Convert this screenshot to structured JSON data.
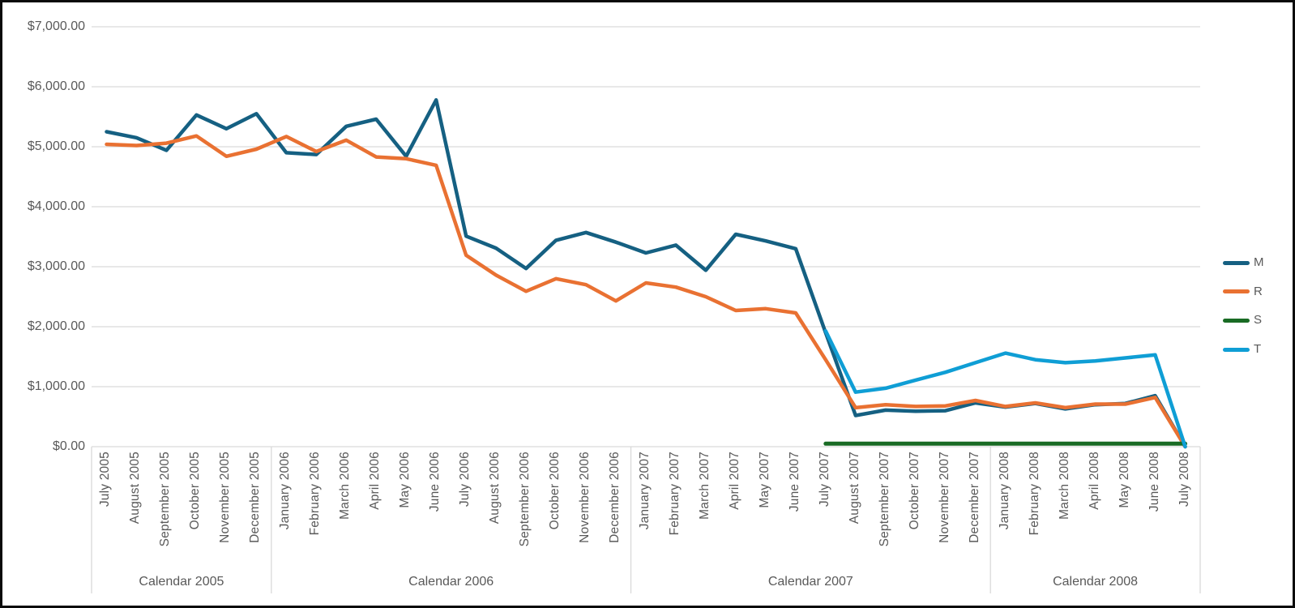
{
  "colors": {
    "background": "#FFFFFF",
    "border": "#0B0B0B",
    "gridline": "#D9D9D9",
    "axis_line": "#D9D9D9",
    "label_text": "#595959"
  },
  "chart_data": {
    "type": "line",
    "title": "",
    "xlabel": "",
    "ylabel": "",
    "grid": true,
    "categories": [
      "July 2005",
      "August 2005",
      "September 2005",
      "October 2005",
      "November 2005",
      "December 2005",
      "January 2006",
      "February 2006",
      "March 2006",
      "April 2006",
      "May 2006",
      "June 2006",
      "July 2006",
      "August 2006",
      "September 2006",
      "October 2006",
      "November 2006",
      "December 2006",
      "January 2007",
      "February 2007",
      "March 2007",
      "April 2007",
      "May 2007",
      "June 2007",
      "July 2007",
      "August 2007",
      "September 2007",
      "October 2007",
      "November 2007",
      "December 2007",
      "January 2008",
      "February 2008",
      "March 2008",
      "April 2008",
      "May 2008",
      "June 2008",
      "July 2008"
    ],
    "year_groups": [
      {
        "label": "Calendar 2005",
        "start": 0,
        "end": 5
      },
      {
        "label": "Calendar 2006",
        "start": 6,
        "end": 17
      },
      {
        "label": "Calendar 2007",
        "start": 18,
        "end": 29
      },
      {
        "label": "Calendar 2008",
        "start": 30,
        "end": 36
      }
    ],
    "series": [
      {
        "name": "M",
        "color": "#156082",
        "values": [
          5250,
          5150,
          4940,
          5530,
          5300,
          5550,
          4900,
          4870,
          5340,
          5460,
          4840,
          5780,
          3510,
          3310,
          2970,
          3440,
          3570,
          3410,
          3230,
          3360,
          2940,
          3540,
          3430,
          3300,
          1900,
          520,
          610,
          590,
          600,
          730,
          660,
          720,
          630,
          700,
          720,
          850,
          0
        ]
      },
      {
        "name": "R",
        "color": "#E97132",
        "values": [
          5040,
          5020,
          5060,
          5180,
          4840,
          4960,
          5170,
          4920,
          5110,
          4830,
          4800,
          4690,
          3190,
          2860,
          2590,
          2800,
          2700,
          2430,
          2730,
          2660,
          2500,
          2270,
          2300,
          2230,
          1450,
          650,
          700,
          670,
          680,
          770,
          670,
          730,
          650,
          710,
          710,
          820,
          0
        ]
      },
      {
        "name": "S",
        "color": "#196B24",
        "values": [
          null,
          null,
          null,
          null,
          null,
          null,
          null,
          null,
          null,
          null,
          null,
          null,
          null,
          null,
          null,
          null,
          null,
          null,
          null,
          null,
          null,
          null,
          null,
          null,
          50,
          50,
          50,
          50,
          50,
          50,
          50,
          50,
          50,
          50,
          50,
          50,
          50
        ]
      },
      {
        "name": "T",
        "color": "#0F9ED5",
        "values": [
          null,
          null,
          null,
          null,
          null,
          null,
          null,
          null,
          null,
          null,
          null,
          null,
          null,
          null,
          null,
          null,
          null,
          null,
          null,
          null,
          null,
          null,
          null,
          null,
          1930,
          910,
          975,
          1110,
          1240,
          1400,
          1560,
          1450,
          1400,
          1430,
          1480,
          1530,
          0
        ]
      }
    ],
    "y_axis": {
      "min": 0,
      "max": 7000,
      "step": 1000,
      "tick_labels": [
        "$0.00",
        "$1,000.00",
        "$2,000.00",
        "$3,000.00",
        "$4,000.00",
        "$5,000.00",
        "$6,000.00",
        "$7,000.00"
      ]
    },
    "legend": {
      "position": "right",
      "entries": [
        "M",
        "R",
        "S",
        "T"
      ]
    }
  }
}
